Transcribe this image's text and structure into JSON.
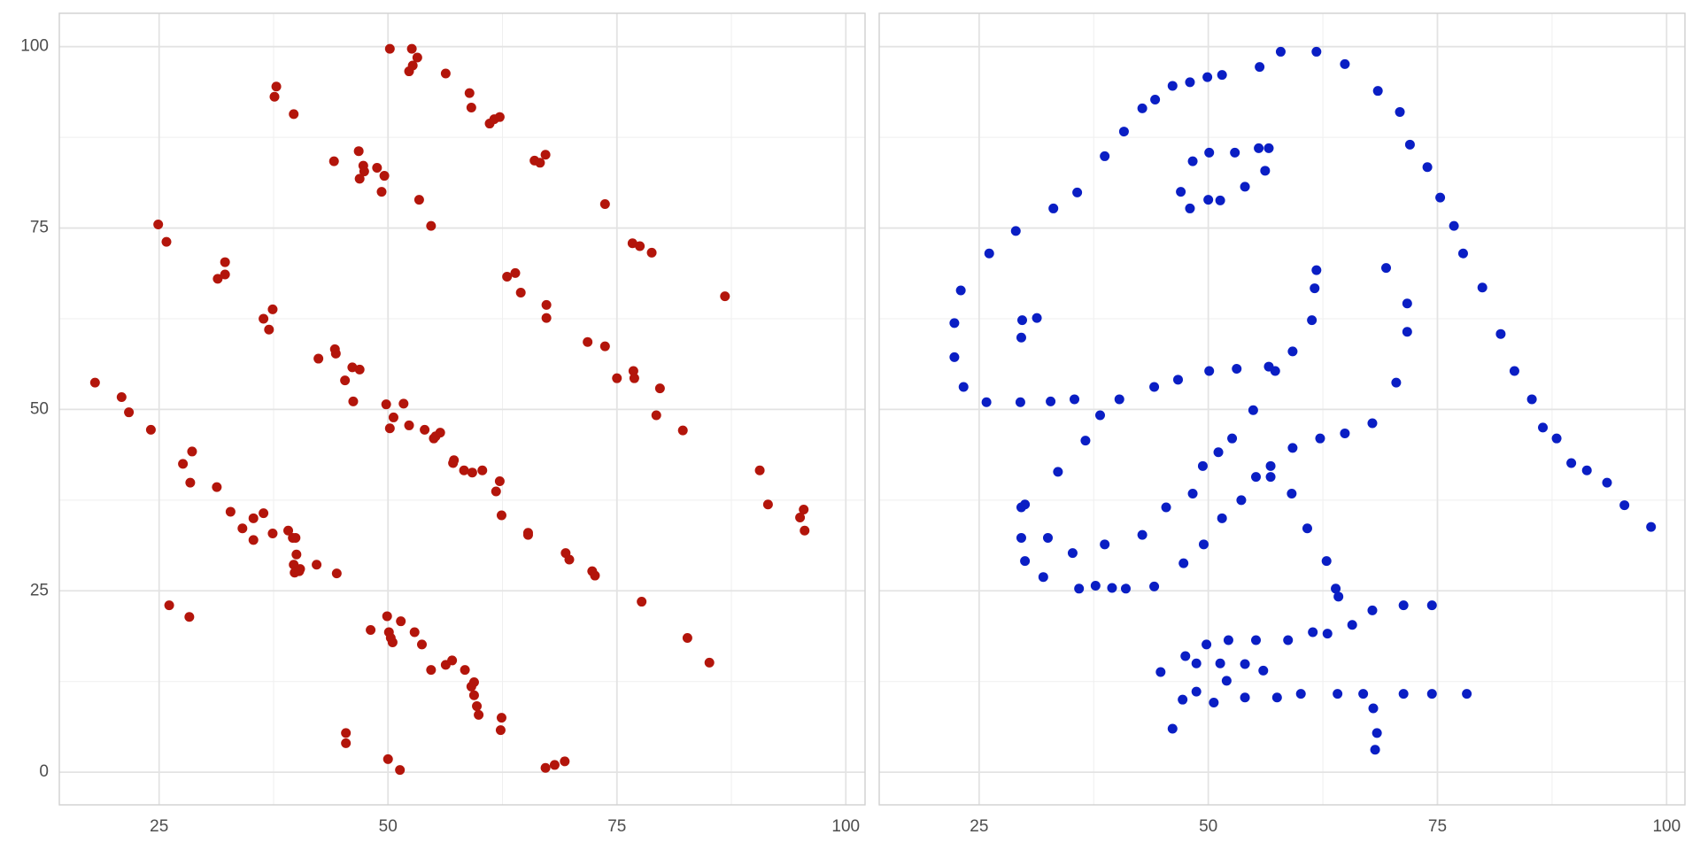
{
  "chart_data": [
    {
      "type": "scatter",
      "color": "#b3150b",
      "xlim": [
        14.1,
        102.1
      ],
      "ylim": [
        -4.5,
        104.6
      ],
      "xticks": [
        25,
        50,
        75,
        100
      ],
      "yticks": [
        0,
        25,
        50,
        75,
        100
      ],
      "x_minor_ticks": [
        37.5,
        62.5,
        87.5
      ],
      "y_minor_ticks": [
        12.5,
        37.5,
        62.5,
        87.5
      ],
      "grid": true,
      "ytick_labels": true,
      "x": [
        18.0,
        20.9,
        21.7,
        24.1,
        24.9,
        25.8,
        26.1,
        27.6,
        28.3,
        28.6,
        28.4,
        31.3,
        31.4,
        32.2,
        32.2,
        32.8,
        34.1,
        35.3,
        35.3,
        36.4,
        36.4,
        37.0,
        37.4,
        37.4,
        37.6,
        37.8,
        39.7,
        39.1,
        39.6,
        39.9,
        40.0,
        39.7,
        39.8,
        40.4,
        40.3,
        42.2,
        42.4,
        44.1,
        44.2,
        44.3,
        44.4,
        45.3,
        45.4,
        45.4,
        46.1,
        46.2,
        46.9,
        46.8,
        47.3,
        47.4,
        46.9,
        48.1,
        48.8,
        49.3,
        49.6,
        49.8,
        49.9,
        50.0,
        50.2,
        50.1,
        50.2,
        50.3,
        50.5,
        50.6,
        51.3,
        51.4,
        51.7,
        52.3,
        52.3,
        52.6,
        52.7,
        53.2,
        52.9,
        53.4,
        53.7,
        54.0,
        54.7,
        54.7,
        55.0,
        55.2,
        55.7,
        56.3,
        56.3,
        57.0,
        57.1,
        57.2,
        58.3,
        58.4,
        58.9,
        59.1,
        59.1,
        59.4,
        59.4,
        59.2,
        60.3,
        59.7,
        59.9,
        61.1,
        61.6,
        61.8,
        62.2,
        62.2,
        62.3,
        62.4,
        62.4,
        63.0,
        63.9,
        64.5,
        65.3,
        65.3,
        66.0,
        66.6,
        67.2,
        67.3,
        67.3,
        67.2,
        68.2,
        69.3,
        69.4,
        69.8,
        71.8,
        72.3,
        72.6,
        73.7,
        73.7,
        75.0,
        76.7,
        76.8,
        76.9,
        77.5,
        77.7,
        78.8,
        79.3,
        79.7,
        82.2,
        82.7,
        85.1,
        86.8,
        90.6,
        91.5,
        95.0,
        95.4,
        95.5
      ],
      "values": [
        53.7,
        51.7,
        49.6,
        47.2,
        75.5,
        73.1,
        23.0,
        42.5,
        21.4,
        44.2,
        39.9,
        39.3,
        68.0,
        70.3,
        68.6,
        35.9,
        33.6,
        35.0,
        32.0,
        35.7,
        62.5,
        61.0,
        63.8,
        32.9,
        93.1,
        94.5,
        90.7,
        33.3,
        32.3,
        32.3,
        30.0,
        28.6,
        27.5,
        28.0,
        27.7,
        28.6,
        57.0,
        84.2,
        58.3,
        57.7,
        27.4,
        54.0,
        5.4,
        4.0,
        55.8,
        51.1,
        55.5,
        85.6,
        83.6,
        82.8,
        81.8,
        19.6,
        83.3,
        80.0,
        82.2,
        50.7,
        21.5,
        1.8,
        99.7,
        19.3,
        47.4,
        18.5,
        17.9,
        48.9,
        0.3,
        20.8,
        50.8,
        47.8,
        96.6,
        99.7,
        97.4,
        98.5,
        19.3,
        78.9,
        17.6,
        47.2,
        75.3,
        14.1,
        46.0,
        46.3,
        46.8,
        96.3,
        14.8,
        15.4,
        42.6,
        43.0,
        41.6,
        14.1,
        93.6,
        11.8,
        91.6,
        12.4,
        10.6,
        41.3,
        41.6,
        9.1,
        7.9,
        89.4,
        90.0,
        38.7,
        90.3,
        40.1,
        5.8,
        35.4,
        7.5,
        68.3,
        68.8,
        66.1,
        33.0,
        32.7,
        84.3,
        84.0,
        85.1,
        64.4,
        62.6,
        0.6,
        1.0,
        1.5,
        30.2,
        29.3,
        59.3,
        27.7,
        27.1,
        78.3,
        58.7,
        54.3,
        72.9,
        55.3,
        54.3,
        72.5,
        23.5,
        71.6,
        49.2,
        52.9,
        47.1,
        18.5,
        15.1,
        65.6,
        41.6,
        36.9,
        35.1,
        36.2,
        33.3
      ]
    },
    {
      "type": "scatter",
      "color": "#0a1ec4",
      "xlim": [
        14.1,
        102.0
      ],
      "ylim": [
        -4.5,
        104.6
      ],
      "xticks": [
        25,
        50,
        75,
        100
      ],
      "yticks": [
        0,
        25,
        50,
        75,
        100
      ],
      "x_minor_ticks": [
        37.5,
        62.5,
        87.5
      ],
      "y_minor_ticks": [
        12.5,
        37.5,
        62.5,
        87.5
      ],
      "grid": true,
      "ytick_labels": false,
      "x": [
        22.3,
        22.3,
        23.0,
        23.3,
        26.1,
        25.8,
        29.0,
        29.5,
        29.6,
        29.7,
        31.3,
        29.6,
        30.0,
        29.6,
        30.0,
        32.0,
        32.5,
        32.8,
        33.1,
        33.6,
        35.2,
        35.4,
        35.7,
        35.9,
        36.6,
        37.7,
        38.2,
        38.7,
        38.7,
        39.5,
        40.3,
        41.0,
        40.8,
        42.8,
        42.8,
        44.1,
        44.2,
        44.1,
        44.8,
        45.4,
        46.1,
        46.1,
        46.7,
        47.0,
        47.3,
        47.2,
        47.5,
        48.0,
        48.0,
        48.3,
        48.3,
        48.7,
        48.7,
        49.4,
        49.5,
        49.8,
        49.9,
        50.0,
        50.1,
        50.1,
        50.6,
        51.1,
        51.3,
        51.5,
        51.3,
        51.5,
        52.0,
        52.2,
        52.6,
        52.9,
        53.1,
        53.6,
        54.0,
        54.0,
        54.0,
        54.9,
        55.2,
        55.2,
        55.5,
        55.6,
        56.0,
        56.2,
        56.6,
        56.6,
        56.8,
        56.8,
        57.3,
        57.5,
        57.9,
        58.7,
        59.1,
        59.2,
        59.2,
        60.1,
        60.8,
        61.3,
        61.4,
        61.6,
        61.8,
        61.8,
        62.2,
        62.9,
        63.0,
        63.9,
        64.2,
        64.1,
        64.9,
        64.9,
        65.7,
        66.9,
        67.9,
        67.9,
        68.0,
        68.4,
        68.2,
        68.5,
        69.4,
        70.5,
        70.9,
        71.3,
        71.3,
        71.7,
        71.7,
        72.0,
        73.9,
        74.4,
        74.4,
        75.3,
        76.8,
        77.8,
        78.2,
        79.9,
        81.9,
        83.4,
        85.3,
        86.5,
        88.0,
        89.6,
        91.3,
        93.5,
        95.4,
        98.3
      ],
      "values": [
        61.9,
        57.2,
        66.4,
        53.1,
        71.5,
        51.0,
        74.6,
        51.0,
        59.9,
        62.3,
        62.6,
        36.5,
        36.9,
        32.3,
        29.1,
        26.9,
        32.3,
        51.1,
        77.7,
        41.4,
        30.2,
        51.4,
        79.9,
        25.3,
        45.7,
        25.7,
        49.2,
        31.4,
        84.9,
        25.4,
        51.4,
        25.3,
        88.3,
        32.7,
        91.5,
        53.1,
        92.7,
        25.6,
        13.8,
        36.5,
        94.6,
        6.0,
        54.1,
        80.0,
        28.8,
        10.0,
        16.0,
        95.1,
        77.7,
        84.2,
        38.4,
        15.0,
        11.1,
        42.2,
        31.4,
        17.6,
        95.8,
        78.9,
        85.4,
        55.3,
        9.6,
        44.1,
        15.0,
        96.1,
        78.8,
        35.0,
        12.6,
        18.2,
        46.0,
        85.4,
        55.6,
        37.5,
        80.7,
        10.3,
        14.9,
        49.9,
        40.7,
        18.2,
        86.0,
        97.2,
        14.0,
        82.9,
        86.0,
        55.9,
        40.7,
        42.2,
        55.3,
        10.3,
        99.3,
        18.2,
        38.4,
        44.7,
        58.0,
        10.8,
        33.6,
        62.3,
        19.3,
        66.7,
        69.2,
        99.3,
        46.0,
        29.1,
        19.1,
        25.3,
        24.2,
        10.8,
        97.6,
        46.7,
        20.3,
        10.8,
        22.3,
        48.1,
        8.8,
        5.4,
        3.1,
        93.9,
        69.5,
        53.7,
        91.0,
        23.0,
        10.8,
        64.6,
        60.7,
        86.5,
        83.4,
        23.0,
        10.8,
        79.2,
        75.3,
        71.5,
        10.8,
        66.8,
        60.4,
        55.3,
        51.4,
        47.5,
        46.0,
        42.6,
        41.6,
        39.9,
        36.8,
        33.8
      ]
    }
  ]
}
